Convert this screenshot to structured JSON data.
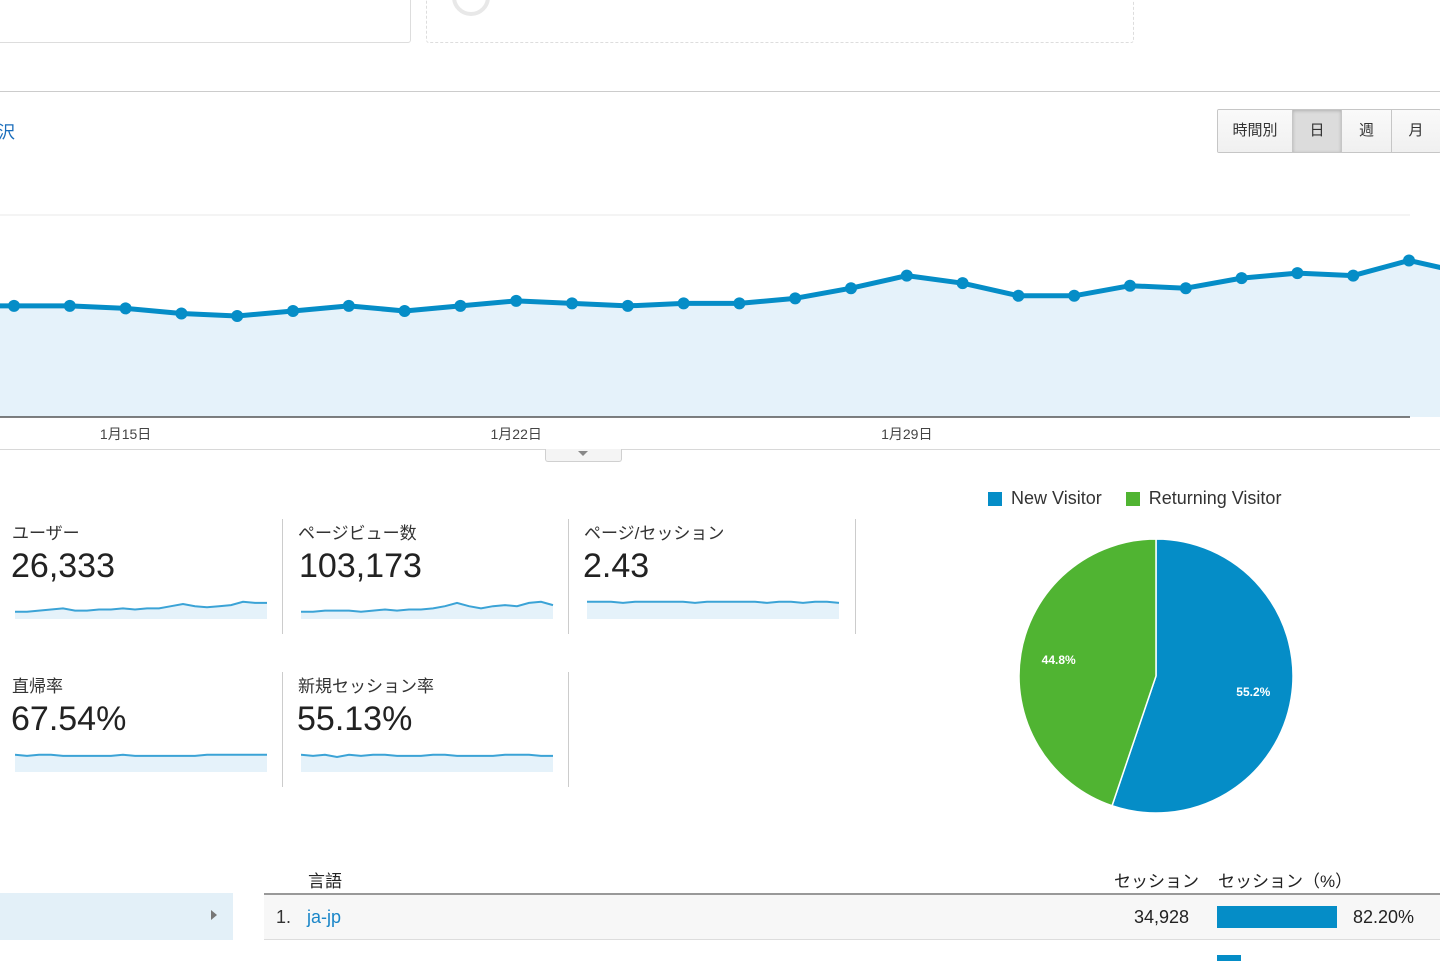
{
  "toolbar": {
    "link_fragment": "沢",
    "granularity": [
      {
        "label": "時間別",
        "active": false
      },
      {
        "label": "日",
        "active": true
      },
      {
        "label": "週",
        "active": false
      },
      {
        "label": "月",
        "active": false
      }
    ]
  },
  "chart_data": [
    {
      "type": "area",
      "x_tick_labels": [
        "1月15日",
        "1月22日",
        "1月29日"
      ],
      "relative_values": [
        44,
        44,
        43,
        41,
        40,
        42,
        44,
        42,
        44,
        46,
        45,
        44,
        45,
        45,
        47,
        51,
        56,
        53,
        48,
        48,
        52,
        51,
        55,
        57,
        56,
        62,
        57
      ],
      "gridlines": true,
      "color": "#058dc7"
    },
    {
      "type": "pie",
      "legend_position": "top",
      "series": [
        {
          "name": "New Visitor",
          "value": 55.2,
          "label": "55.2%",
          "color": "#058dc7"
        },
        {
          "name": "Returning Visitor",
          "value": 44.8,
          "label": "44.8%",
          "color": "#50b432"
        }
      ]
    }
  ],
  "metrics": [
    {
      "label": "ユーザー",
      "value": "26,333",
      "spark": [
        3,
        3,
        4,
        5,
        6,
        4,
        4,
        5,
        5,
        6,
        5,
        6,
        6,
        8,
        10,
        8,
        7,
        8,
        9,
        12,
        11,
        11
      ]
    },
    {
      "label": "ページビュー数",
      "value": "103,173",
      "spark": [
        3,
        3,
        4,
        4,
        4,
        3,
        4,
        5,
        4,
        5,
        5,
        6,
        8,
        11,
        8,
        6,
        8,
        9,
        8,
        11,
        12,
        9
      ]
    },
    {
      "label": "ページ/セッション",
      "value": "2.43",
      "spark": [
        12,
        12,
        12,
        11,
        12,
        12,
        12,
        12,
        12,
        11,
        12,
        12,
        12,
        12,
        12,
        11,
        12,
        12,
        11,
        12,
        12,
        11
      ]
    },
    {
      "label": "直帰率",
      "value": "67.54%",
      "spark": [
        12,
        11,
        12,
        12,
        11,
        11,
        11,
        11,
        11,
        12,
        11,
        11,
        11,
        11,
        11,
        11,
        12,
        12,
        12,
        12,
        12,
        12
      ]
    },
    {
      "label": "新規セッション率",
      "value": "55.13%",
      "spark": [
        12,
        11,
        12,
        10,
        12,
        11,
        12,
        12,
        11,
        11,
        11,
        12,
        12,
        11,
        11,
        11,
        11,
        12,
        12,
        12,
        11,
        11
      ]
    }
  ],
  "table": {
    "headers": {
      "language": "言語",
      "sessions": "セッション",
      "sessions_pct": "セッション（%）"
    },
    "rows": [
      {
        "rank": "1.",
        "language": "ja-jp",
        "sessions": "34,928",
        "pct": "82.20%",
        "fraction": 0.822
      }
    ]
  }
}
